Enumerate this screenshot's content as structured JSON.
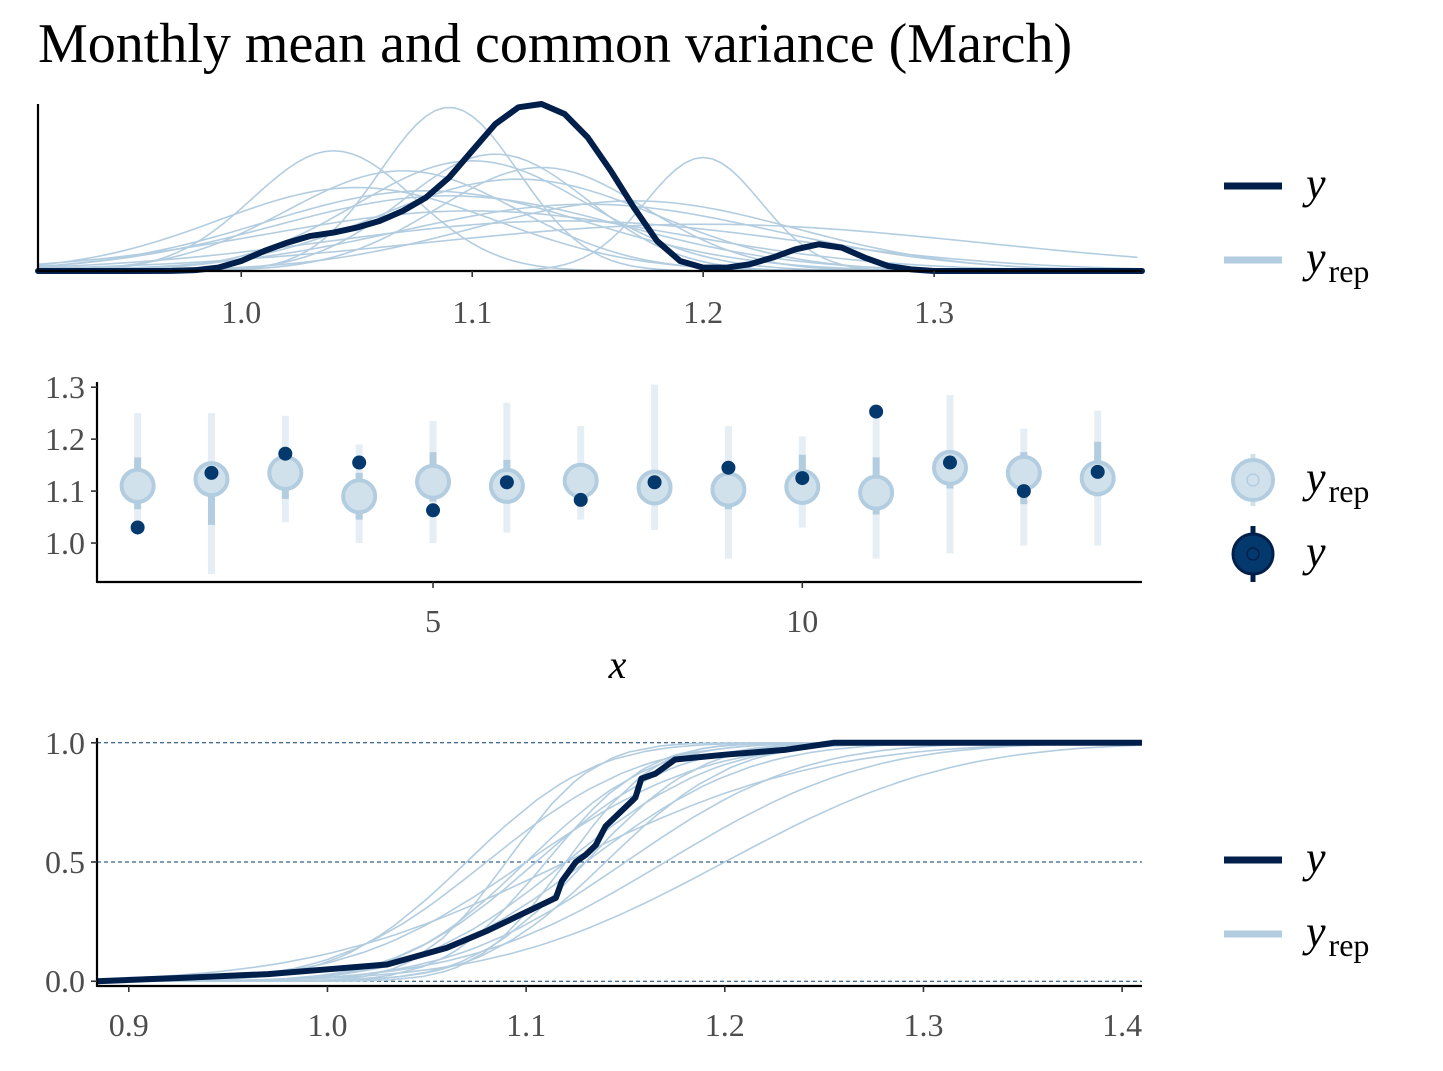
{
  "title": "Monthly mean and common variance (March)",
  "colors": {
    "y": "#011f4b",
    "y_point": "#03396c",
    "yrep": "#b3cde0",
    "yrep_light": "#d1e1ec",
    "axis": "#000000",
    "grid": "#03396c"
  },
  "chart_data": [
    {
      "type": "density",
      "xlim": [
        0.912,
        1.39
      ],
      "x_ticks": [
        1.0,
        1.1,
        1.2,
        1.3
      ],
      "x_tick_labels": [
        "1.0",
        "1.1",
        "1.2",
        "1.3"
      ],
      "y_axis": "hidden",
      "legend": [
        {
          "label": "y",
          "sub": "",
          "style": "line-dark"
        },
        {
          "label": "y",
          "sub": "rep",
          "style": "line-light"
        }
      ],
      "y": {
        "x": [
          0.912,
          0.93,
          0.95,
          0.97,
          0.98,
          0.99,
          1.0,
          1.01,
          1.02,
          1.03,
          1.04,
          1.05,
          1.06,
          1.07,
          1.08,
          1.09,
          1.1,
          1.11,
          1.12,
          1.13,
          1.14,
          1.15,
          1.16,
          1.17,
          1.18,
          1.19,
          1.2,
          1.21,
          1.22,
          1.23,
          1.24,
          1.25,
          1.26,
          1.27,
          1.28,
          1.29,
          1.3,
          1.32,
          1.34,
          1.36,
          1.39
        ],
        "density": [
          0,
          0,
          0,
          0.001,
          0.005,
          0.02,
          0.06,
          0.12,
          0.17,
          0.21,
          0.23,
          0.26,
          0.3,
          0.36,
          0.44,
          0.56,
          0.72,
          0.88,
          0.98,
          1.0,
          0.94,
          0.8,
          0.6,
          0.38,
          0.18,
          0.06,
          0.02,
          0.02,
          0.04,
          0.08,
          0.13,
          0.16,
          0.14,
          0.08,
          0.03,
          0.01,
          0,
          0,
          0,
          0,
          0
        ]
      },
      "yrep": [
        {
          "mu": 1.04,
          "sd": 0.035,
          "h": 0.72
        },
        {
          "mu": 1.09,
          "sd": 0.03,
          "h": 0.98
        },
        {
          "mu": 1.2,
          "sd": 0.025,
          "h": 0.68
        },
        {
          "mu": 1.1,
          "sd": 0.05,
          "h": 0.66
        },
        {
          "mu": 1.12,
          "sd": 0.06,
          "h": 0.55
        },
        {
          "mu": 1.08,
          "sd": 0.07,
          "h": 0.48
        },
        {
          "mu": 1.15,
          "sd": 0.08,
          "h": 0.4
        },
        {
          "mu": 1.05,
          "sd": 0.06,
          "h": 0.5
        },
        {
          "mu": 1.13,
          "sd": 0.045,
          "h": 0.62
        },
        {
          "mu": 1.1,
          "sd": 0.09,
          "h": 0.36
        },
        {
          "mu": 1.17,
          "sd": 0.07,
          "h": 0.42
        },
        {
          "mu": 1.07,
          "sd": 0.05,
          "h": 0.6
        },
        {
          "mu": 1.14,
          "sd": 0.1,
          "h": 0.3
        },
        {
          "mu": 1.11,
          "sd": 0.04,
          "h": 0.7
        },
        {
          "mu": 1.2,
          "sd": 0.12,
          "h": 0.28
        },
        {
          "mu": 1.09,
          "sd": 0.075,
          "h": 0.45
        }
      ]
    },
    {
      "type": "intervals",
      "xlabel": "x",
      "xlim": [
        0.45,
        14.6
      ],
      "ylim": [
        0.925,
        1.31
      ],
      "x_ticks": [
        5,
        10
      ],
      "x_tick_labels": [
        "5",
        "10"
      ],
      "y_ticks": [
        1.0,
        1.1,
        1.2,
        1.3
      ],
      "y_tick_labels": [
        "1.0",
        "1.1",
        "1.2",
        "1.3"
      ],
      "legend": [
        {
          "label": "y",
          "sub": "rep",
          "style": "point-light"
        },
        {
          "label": "y",
          "sub": "",
          "style": "point-dark"
        }
      ],
      "x": [
        1,
        2,
        3,
        4,
        5,
        6,
        7,
        8,
        9,
        10,
        11,
        12,
        13,
        14
      ],
      "y": [
        1.03,
        1.135,
        1.172,
        1.155,
        1.063,
        1.117,
        1.083,
        1.117,
        1.145,
        1.125,
        1.253,
        1.155,
        1.1,
        1.137
      ],
      "yrep_median": [
        1.11,
        1.123,
        1.135,
        1.09,
        1.118,
        1.11,
        1.12,
        1.107,
        1.103,
        1.108,
        1.097,
        1.145,
        1.135,
        1.125
      ],
      "inner_low": [
        1.065,
        1.035,
        1.085,
        1.045,
        1.08,
        1.09,
        1.085,
        1.085,
        1.065,
        1.085,
        1.055,
        1.105,
        1.075,
        1.09
      ],
      "inner_high": [
        1.165,
        1.155,
        1.165,
        1.135,
        1.175,
        1.16,
        1.15,
        1.135,
        1.145,
        1.17,
        1.165,
        1.17,
        1.175,
        1.195
      ],
      "outer_low": [
        1.04,
        0.94,
        1.04,
        1.0,
        1.0,
        1.02,
        1.045,
        1.025,
        0.97,
        1.03,
        0.97,
        0.98,
        0.995,
        0.995
      ],
      "outer_high": [
        1.25,
        1.25,
        1.245,
        1.19,
        1.235,
        1.27,
        1.225,
        1.305,
        1.225,
        1.205,
        1.25,
        1.285,
        1.22,
        1.255
      ]
    },
    {
      "type": "ecdf",
      "xlim": [
        0.884,
        1.41
      ],
      "ylim": [
        -0.02,
        1.02
      ],
      "x_ticks": [
        0.9,
        1.0,
        1.1,
        1.2,
        1.3,
        1.4
      ],
      "x_tick_labels": [
        "0.9",
        "1.0",
        "1.1",
        "1.2",
        "1.3",
        "1.4"
      ],
      "y_ticks": [
        0.0,
        0.5,
        1.0
      ],
      "y_tick_labels": [
        "0.0",
        "0.5",
        "1.0"
      ],
      "gridlines": [
        0.0,
        0.5,
        1.0
      ],
      "legend": [
        {
          "label": "y",
          "sub": "",
          "style": "line-dark"
        },
        {
          "label": "y",
          "sub": "rep",
          "style": "line-light"
        }
      ],
      "y": {
        "x": [
          0.884,
          0.93,
          0.97,
          1.0,
          1.03,
          1.06,
          1.08,
          1.095,
          1.105,
          1.115,
          1.118,
          1.125,
          1.13,
          1.135,
          1.14,
          1.155,
          1.158,
          1.165,
          1.175,
          1.2,
          1.23,
          1.255,
          1.41
        ],
        "cdf": [
          0,
          0.015,
          0.03,
          0.05,
          0.07,
          0.14,
          0.21,
          0.27,
          0.31,
          0.35,
          0.42,
          0.5,
          0.53,
          0.57,
          0.65,
          0.77,
          0.85,
          0.87,
          0.93,
          0.95,
          0.97,
          1.0,
          1.0
        ]
      },
      "yrep": [
        {
          "mu": 1.1,
          "sd": 0.05
        },
        {
          "mu": 1.09,
          "sd": 0.035
        },
        {
          "mu": 1.12,
          "sd": 0.06
        },
        {
          "mu": 1.08,
          "sd": 0.06
        },
        {
          "mu": 1.13,
          "sd": 0.045
        },
        {
          "mu": 1.11,
          "sd": 0.04
        },
        {
          "mu": 1.15,
          "sd": 0.07
        },
        {
          "mu": 1.1,
          "sd": 0.07
        },
        {
          "mu": 1.14,
          "sd": 0.05
        },
        {
          "mu": 1.07,
          "sd": 0.05
        },
        {
          "mu": 1.12,
          "sd": 0.035
        },
        {
          "mu": 1.17,
          "sd": 0.08
        },
        {
          "mu": 1.12,
          "sd": 0.1
        },
        {
          "mu": 1.2,
          "sd": 0.09
        },
        {
          "mu": 1.105,
          "sd": 0.055
        },
        {
          "mu": 1.13,
          "sd": 0.065
        }
      ]
    }
  ]
}
